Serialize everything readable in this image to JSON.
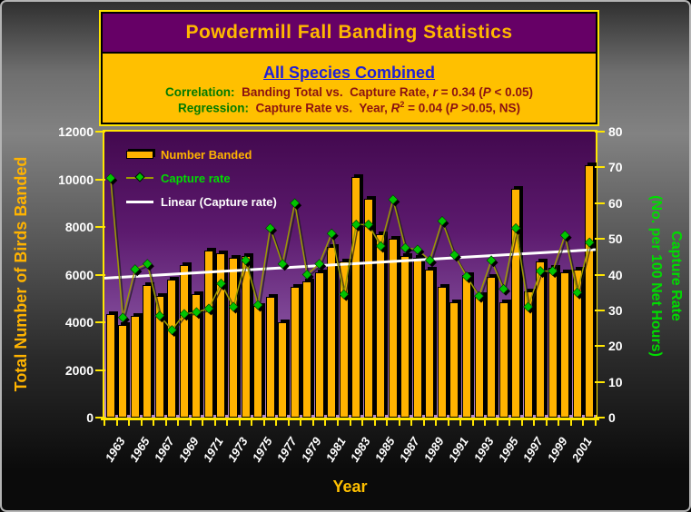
{
  "header": {
    "title": "Powdermill Fall Banding Statistics",
    "subtitle": "All Species Combined",
    "correlation": {
      "label": "Correlation:",
      "segments": [
        {
          "t": "  Banding Total vs.  Capture Rate, "
        },
        {
          "t": "r",
          "i": true
        },
        {
          "t": " = 0.34 ("
        },
        {
          "t": "P",
          "i": true
        },
        {
          "t": " < 0.05)"
        }
      ]
    },
    "regression": {
      "label": "Regression:",
      "segments": [
        {
          "t": "  Capture Rate vs.  Year, "
        },
        {
          "t": "R",
          "i": true
        },
        {
          "t": "2",
          "sup": true
        },
        {
          "t": " = 0.04 ("
        },
        {
          "t": "P",
          "i": true
        },
        {
          "t": " >0.05, NS)"
        }
      ]
    }
  },
  "chart_data": {
    "type": "bar",
    "categories": [
      1963,
      1964,
      1965,
      1966,
      1967,
      1968,
      1969,
      1970,
      1971,
      1972,
      1973,
      1974,
      1975,
      1976,
      1977,
      1978,
      1979,
      1980,
      1981,
      1982,
      1983,
      1984,
      1985,
      1986,
      1987,
      1988,
      1989,
      1990,
      1991,
      1992,
      1993,
      1994,
      1995,
      1996,
      1997,
      1998,
      1999,
      2000,
      2001,
      2002
    ],
    "series": [
      {
        "name": "Number Banded",
        "type": "bar",
        "axis": "left",
        "color": "#ffb300",
        "values": [
          4350,
          3900,
          4250,
          5550,
          5100,
          5800,
          6400,
          5200,
          7000,
          6900,
          6700,
          6800,
          4700,
          5050,
          4000,
          5500,
          5700,
          6100,
          7150,
          6550,
          10100,
          9200,
          7700,
          7500,
          6800,
          6700,
          6200,
          5500,
          4850,
          6000,
          5150,
          5900,
          4850,
          9600,
          5300,
          6550,
          6300,
          6100,
          6200,
          10600
        ]
      },
      {
        "name": "Capture rate",
        "type": "line",
        "axis": "right",
        "color": "#00c400",
        "line_color": "#9c9c00",
        "values": [
          67,
          28,
          41.5,
          43,
          28.5,
          24.5,
          29,
          29.5,
          30.5,
          37.5,
          31,
          44,
          31.5,
          53,
          43,
          60,
          40,
          43,
          51.5,
          34.5,
          54,
          54,
          48,
          61,
          47.5,
          47,
          44,
          55,
          45.5,
          39.5,
          34,
          44,
          36,
          53,
          31,
          41,
          41,
          51,
          35,
          49
        ]
      },
      {
        "name": "Linear (Capture rate)",
        "type": "trend",
        "axis": "right",
        "color": "#ffffff",
        "trend_start": 39,
        "trend_end": 47
      }
    ],
    "left_axis": {
      "title": "Total Number of Birds Banded",
      "min": 0,
      "max": 12000,
      "ticks": [
        0,
        2000,
        4000,
        6000,
        8000,
        10000,
        12000
      ]
    },
    "right_axis": {
      "title_line1": "Capture Rate",
      "title_line2": "(No. per 100 Net Hours)",
      "min": 0,
      "max": 80,
      "ticks": [
        0,
        10,
        20,
        30,
        40,
        50,
        60,
        70,
        80
      ]
    },
    "x_axis": {
      "title": "Year",
      "labels": [
        "1963",
        "1965",
        "1967",
        "1969",
        "1971",
        "1973",
        "1975",
        "1977",
        "1979",
        "1981",
        "1983",
        "1985",
        "1987",
        "1989",
        "1991",
        "1993",
        "1995",
        "1997",
        "1999",
        "2001"
      ]
    },
    "legend_position": "top-left-inside",
    "grid": false
  }
}
